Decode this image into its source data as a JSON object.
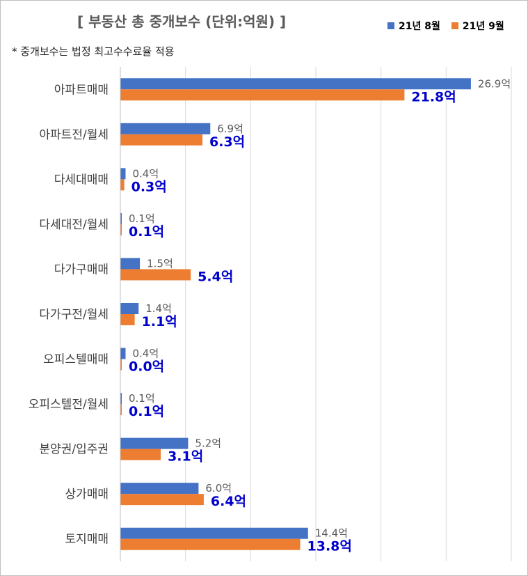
{
  "chart_data": {
    "type": "bar",
    "orientation": "horizontal",
    "title": "[ 부동산 총 중개보수 (단위:억원) ]",
    "note": "* 중개보수는 법정 최고수수료율 적용",
    "categories": [
      "아파트매매",
      "아파트전/월세",
      "다세대매매",
      "다세대전/월세",
      "다가구매매",
      "다가구전/월세",
      "오피스텔매매",
      "오피스텔전/월세",
      "분양권/입주권",
      "상가매매",
      "토지매매"
    ],
    "series": [
      {
        "name": "21년 8월",
        "color": "#4472c4",
        "values": [
          26.9,
          6.9,
          0.4,
          0.1,
          1.5,
          1.4,
          0.4,
          0.1,
          5.2,
          6.0,
          14.4
        ],
        "labels": [
          "26.9억",
          "6.9억",
          "0.4억",
          "0.1억",
          "1.5억",
          "1.4억",
          "0.4억",
          "0.1억",
          "5.2억",
          "6.0억",
          "14.4억"
        ]
      },
      {
        "name": "21년 9월",
        "color": "#ed7d31",
        "values": [
          21.8,
          6.3,
          0.3,
          0.1,
          5.4,
          1.1,
          0.0,
          0.1,
          3.1,
          6.4,
          13.8
        ],
        "labels": [
          "21.8억",
          "6.3억",
          "0.3억",
          "0.1억",
          "5.4억",
          "1.1억",
          "0.0억",
          "0.1억",
          "3.1억",
          "6.4억",
          "13.8억"
        ]
      }
    ],
    "xlim": [
      0,
      30
    ],
    "grid": true,
    "legend": "top-right"
  }
}
